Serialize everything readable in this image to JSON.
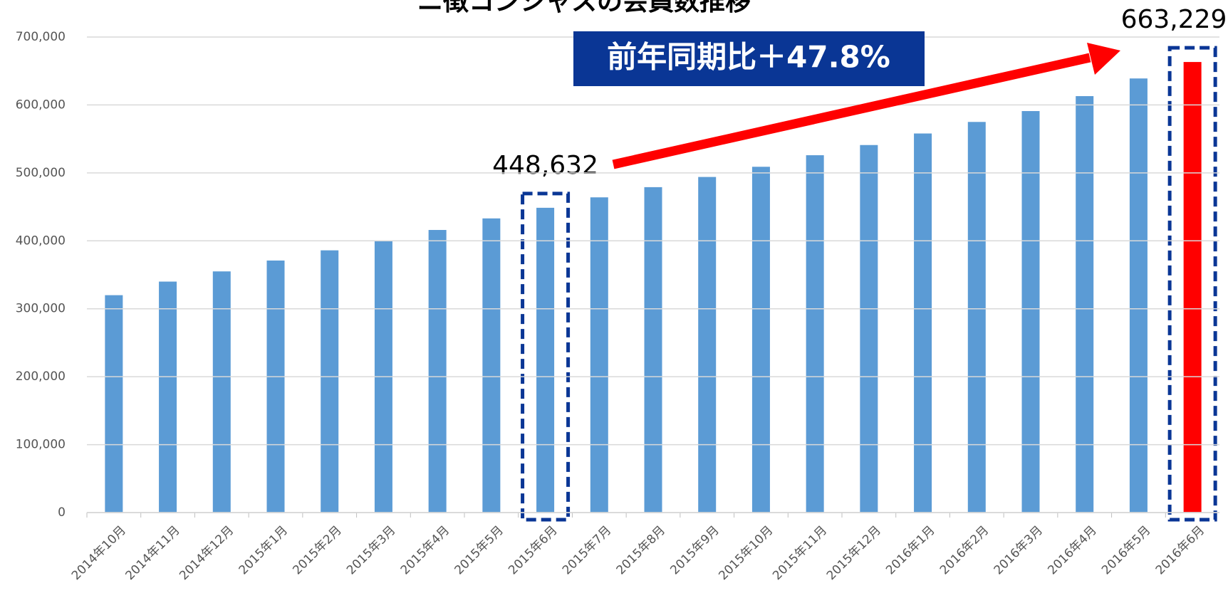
{
  "chart_data": {
    "type": "bar",
    "title": "ニ徴コンシャスの会員数推移",
    "categories": [
      "2014年10月",
      "2014年11月",
      "2014年12月",
      "2015年1月",
      "2015年2月",
      "2015年3月",
      "2015年4月",
      "2015年5月",
      "2015年6月",
      "2015年7月",
      "2015年8月",
      "2015年9月",
      "2015年10月",
      "2015年11月",
      "2015年12月",
      "2016年1月",
      "2016年2月",
      "2016年3月",
      "2016年4月",
      "2016年5月",
      "2016年6月"
    ],
    "values": [
      320000,
      340000,
      355000,
      371000,
      386000,
      400000,
      416000,
      433000,
      448632,
      464000,
      479000,
      494000,
      509000,
      526000,
      541000,
      558000,
      575000,
      591000,
      613000,
      639000,
      663229
    ],
    "value_labels": [
      null,
      null,
      null,
      null,
      null,
      null,
      null,
      null,
      "448,632",
      null,
      null,
      null,
      null,
      null,
      null,
      null,
      null,
      null,
      null,
      null,
      "663,229"
    ],
    "colors": [
      "#5b9bd5",
      "#5b9bd5",
      "#5b9bd5",
      "#5b9bd5",
      "#5b9bd5",
      "#5b9bd5",
      "#5b9bd5",
      "#5b9bd5",
      "#5b9bd5",
      "#5b9bd5",
      "#5b9bd5",
      "#5b9bd5",
      "#5b9bd5",
      "#5b9bd5",
      "#5b9bd5",
      "#5b9bd5",
      "#5b9bd5",
      "#5b9bd5",
      "#5b9bd5",
      "#5b9bd5",
      "#ff0000"
    ],
    "annotation": "前年同期比＋47.8%",
    "ylim": [
      0,
      700000
    ],
    "yticks": [
      0,
      {
        "value": 100000,
        "label": "100,000"
      },
      {
        "value": 200000,
        "label": "200,000"
      },
      {
        "value": 300000,
        "label": "300,000"
      },
      {
        "value": 400000,
        "label": "400,000"
      },
      {
        "value": 500000,
        "label": "500,000"
      },
      {
        "value": 600000,
        "label": "600,000"
      },
      {
        "value": 700000,
        "label": "700,000"
      }
    ],
    "grid": true
  }
}
